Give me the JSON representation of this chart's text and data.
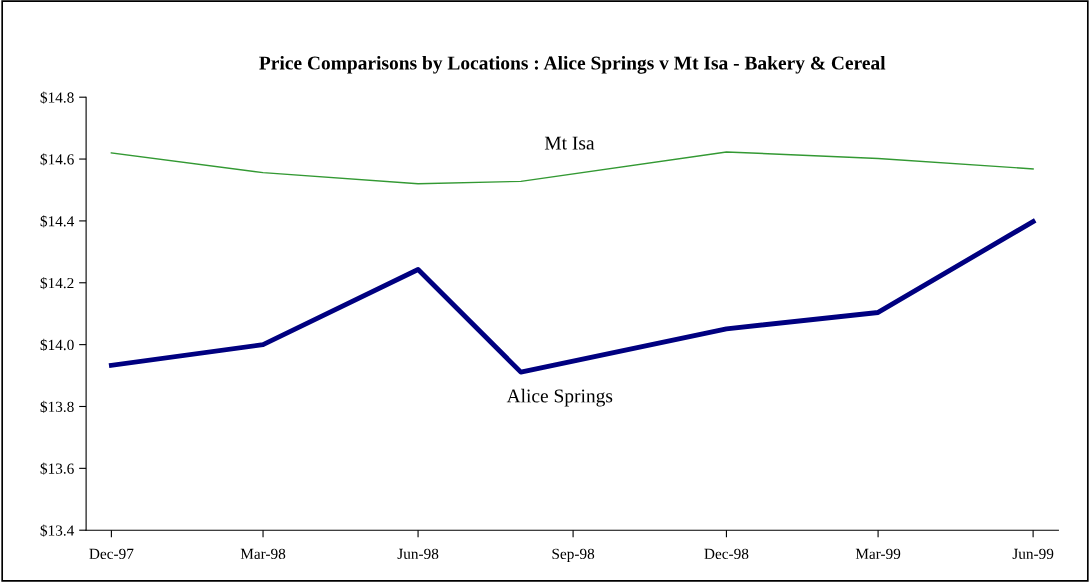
{
  "chart_data": {
    "type": "line",
    "title": "Price Comparisons by Locations : Alice Springs v Mt Isa - Bakery & Cereal",
    "x": [
      "1997-12-16",
      "1998-03-16",
      "1998-06-16",
      "1998-08-16",
      "1998-12-16",
      "1999-03-16",
      "1999-06-16"
    ],
    "series": [
      {
        "name": "Mt Isa",
        "color": "#339933",
        "values": [
          14.62,
          14.556,
          14.52,
          14.528,
          14.623,
          14.602,
          14.568
        ]
      },
      {
        "name": "Alice Springs",
        "color": "#000080",
        "values": [
          13.933,
          14.0,
          14.243,
          13.911,
          14.051,
          14.104,
          14.398
        ]
      }
    ],
    "xlim": [
      "1997-12-01",
      "1999-07-01"
    ],
    "xticks": [
      {
        "value": "1997-12-16",
        "label": "Dec-97"
      },
      {
        "value": "1998-03-16",
        "label": "Mar-98"
      },
      {
        "value": "1998-06-16",
        "label": "Jun-98"
      },
      {
        "value": "1998-09-16",
        "label": "Sep-98"
      },
      {
        "value": "1998-12-16",
        "label": "Dec-98"
      },
      {
        "value": "1999-03-16",
        "label": "Mar-99"
      },
      {
        "value": "1999-06-16",
        "label": "Jun-99"
      }
    ],
    "ylim": [
      13.4,
      14.8
    ],
    "yticks": [
      {
        "value": 13.4,
        "label": "$13.4"
      },
      {
        "value": 13.6,
        "label": "$13.6"
      },
      {
        "value": 13.8,
        "label": "$13.8"
      },
      {
        "value": 14.0,
        "label": "$14.0"
      },
      {
        "value": 14.2,
        "label": "$14.2"
      },
      {
        "value": 14.4,
        "label": "$14.4"
      },
      {
        "value": 14.6,
        "label": "$14.6"
      },
      {
        "value": 14.8,
        "label": "$14.8"
      }
    ],
    "grid": false,
    "legend": false,
    "marker": "none",
    "line_style": "solid"
  }
}
